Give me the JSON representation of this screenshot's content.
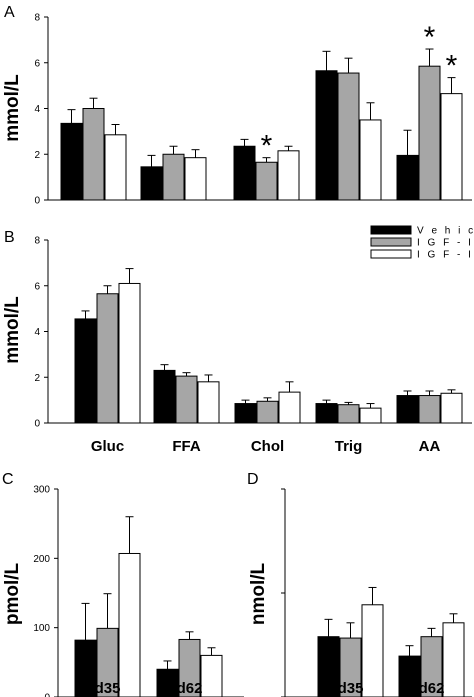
{
  "chart_data": [
    {
      "panel": "A",
      "type": "bar",
      "ylabel": "mmol/L",
      "ylim": [
        0,
        8
      ],
      "yticks": [
        "0",
        "2",
        "4",
        "6",
        "8"
      ],
      "categories": [
        "Gluc",
        "FFA",
        "Chol",
        "Trig",
        "AA"
      ],
      "show_category_labels": false,
      "series": [
        {
          "name": "Vehicle",
          "color": "#000000",
          "values": [
            3.35,
            1.45,
            2.35,
            5.65,
            1.95
          ],
          "errors": [
            0.6,
            0.5,
            0.3,
            0.85,
            1.1
          ]
        },
        {
          "name": "IGF-I",
          "color": "#a6a6a6",
          "values": [
            4.0,
            2.0,
            1.65,
            5.55,
            5.85
          ],
          "errors": [
            0.45,
            0.35,
            0.2,
            0.65,
            0.75
          ]
        },
        {
          "name": "IGF-II",
          "color": "#ffffff",
          "values": [
            2.85,
            1.85,
            2.15,
            3.5,
            4.65
          ],
          "errors": [
            0.45,
            0.35,
            0.2,
            0.75,
            0.7
          ]
        }
      ],
      "annotations": [
        {
          "category": "Chol",
          "series": "IGF-I",
          "text": "*"
        },
        {
          "category": "AA",
          "series": "IGF-I",
          "text": "*"
        },
        {
          "category": "AA",
          "series": "IGF-II",
          "text": "*"
        }
      ]
    },
    {
      "panel": "B",
      "type": "bar",
      "ylabel": "mmol/L",
      "ylim": [
        0,
        8
      ],
      "yticks": [
        "0",
        "2",
        "4",
        "6",
        "8"
      ],
      "categories": [
        "Gluc",
        "FFA",
        "Chol",
        "Trig",
        "AA"
      ],
      "show_category_labels": true,
      "legend": {
        "placement": "top-right",
        "entries": [
          "Vehicle",
          "IGF-I",
          "IGF-II"
        ]
      },
      "series": [
        {
          "name": "Vehicle",
          "color": "#000000",
          "values": [
            4.55,
            2.3,
            0.85,
            0.85,
            1.2
          ],
          "errors": [
            0.35,
            0.25,
            0.15,
            0.15,
            0.2
          ]
        },
        {
          "name": "IGF-I",
          "color": "#a6a6a6",
          "values": [
            5.65,
            2.05,
            0.95,
            0.8,
            1.2
          ],
          "errors": [
            0.35,
            0.15,
            0.15,
            0.1,
            0.2
          ]
        },
        {
          "name": "IGF-II",
          "color": "#ffffff",
          "values": [
            6.1,
            1.8,
            1.35,
            0.65,
            1.3
          ],
          "errors": [
            0.65,
            0.3,
            0.45,
            0.2,
            0.15
          ]
        }
      ],
      "annotations": []
    },
    {
      "panel": "C",
      "type": "bar",
      "ylabel": "pmol/L",
      "ylim": [
        0,
        300
      ],
      "yticks": [
        "0",
        "100",
        "200",
        "300"
      ],
      "categories": [
        "d35",
        "d62"
      ],
      "show_category_labels": true,
      "series": [
        {
          "name": "Vehicle",
          "color": "#000000",
          "values": [
            82,
            40
          ],
          "errors": [
            53,
            12
          ]
        },
        {
          "name": "IGF-I",
          "color": "#a6a6a6",
          "values": [
            99,
            83
          ],
          "errors": [
            50,
            11
          ]
        },
        {
          "name": "IGF-II",
          "color": "#ffffff",
          "values": [
            207,
            60
          ],
          "errors": [
            53,
            11
          ]
        }
      ],
      "annotations": []
    },
    {
      "panel": "D",
      "type": "bar",
      "ylabel": "nmol/L",
      "ylim": [
        0,
        300
      ],
      "yticks": [
        "",
        "",
        ""
      ],
      "categories": [
        "d35",
        "d62"
      ],
      "show_category_labels": true,
      "series": [
        {
          "name": "Vehicle",
          "color": "#000000",
          "values": [
            87,
            59
          ],
          "errors": [
            25,
            15
          ]
        },
        {
          "name": "IGF-I",
          "color": "#a6a6a6",
          "values": [
            85,
            87
          ],
          "errors": [
            22,
            12
          ]
        },
        {
          "name": "IGF-II",
          "color": "#ffffff",
          "values": [
            133,
            107
          ],
          "errors": [
            25,
            13
          ]
        }
      ],
      "annotations": []
    }
  ],
  "legend_labels": [
    "V e h i c l e",
    "I G F - I",
    "I G F - II"
  ]
}
